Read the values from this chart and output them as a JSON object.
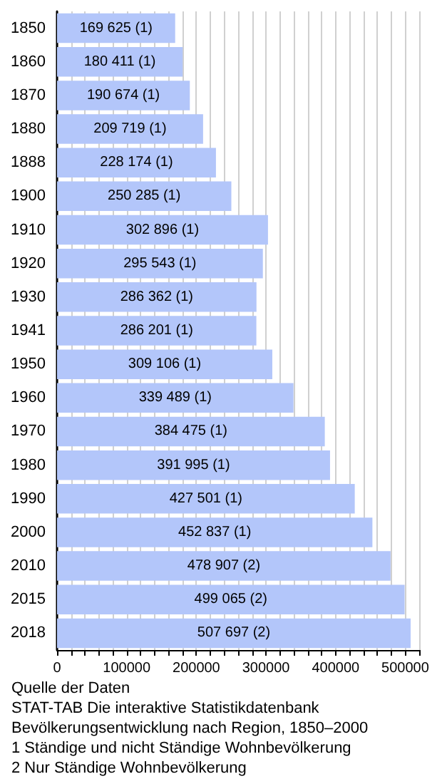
{
  "chart_data": {
    "type": "bar",
    "orientation": "horizontal",
    "categories": [
      "1850",
      "1860",
      "1870",
      "1880",
      "1888",
      "1900",
      "1910",
      "1920",
      "1930",
      "1941",
      "1950",
      "1960",
      "1970",
      "1980",
      "1990",
      "2000",
      "2010",
      "2015",
      "2018"
    ],
    "values": [
      169625,
      180411,
      190674,
      209719,
      228174,
      250285,
      302896,
      295543,
      286362,
      286201,
      309106,
      339489,
      384475,
      391995,
      427501,
      452837,
      478907,
      499065,
      507697
    ],
    "value_labels": [
      "169 625 (1)",
      "180 411 (1)",
      "190 674 (1)",
      "209 719 (1)",
      "228 174 (1)",
      "250 285 (1)",
      "302 896 (1)",
      "295 543 (1)",
      "286 362 (1)",
      "286 201 (1)",
      "309 106 (1)",
      "339 489 (1)",
      "384 475 (1)",
      "391 995 (1)",
      "427 501 (1)",
      "452 837 (1)",
      "478 907 (2)",
      "499 065 (2)",
      "507 697 (2)"
    ],
    "color": "#b3c6fa",
    "xlim": [
      0,
      520000
    ],
    "xticks": [
      0,
      {
        "value": 20000,
        "label": null
      },
      {
        "value": 40000,
        "label": null
      },
      {
        "value": 60000,
        "label": null
      },
      {
        "value": 80000,
        "label": null
      },
      100000,
      {
        "value": 120000,
        "label": null
      },
      {
        "value": 140000,
        "label": null
      },
      {
        "value": 160000,
        "label": null
      },
      {
        "value": 180000,
        "label": null
      },
      200000,
      {
        "value": 220000,
        "label": null
      },
      {
        "value": 240000,
        "label": null
      },
      {
        "value": 260000,
        "label": null
      },
      {
        "value": 280000,
        "label": null
      },
      300000,
      {
        "value": 320000,
        "label": null
      },
      {
        "value": 340000,
        "label": null
      },
      {
        "value": 360000,
        "label": null
      },
      {
        "value": 380000,
        "label": null
      },
      400000,
      {
        "value": 420000,
        "label": null
      },
      {
        "value": 440000,
        "label": null
      },
      {
        "value": 460000,
        "label": null
      },
      {
        "value": 480000,
        "label": null
      },
      500000,
      {
        "value": 520000,
        "label": null
      }
    ],
    "grid": "x",
    "annotations": [
      "Quelle der Daten",
      "STAT-TAB Die interaktive Statistikdatenbank",
      "Bevölkerungsentwicklung nach Region, 1850–2000",
      "1  Ständige und nicht Ständige Wohnbevölkerung",
      "2  Nur Ständige Wohnbevölkerung"
    ]
  }
}
